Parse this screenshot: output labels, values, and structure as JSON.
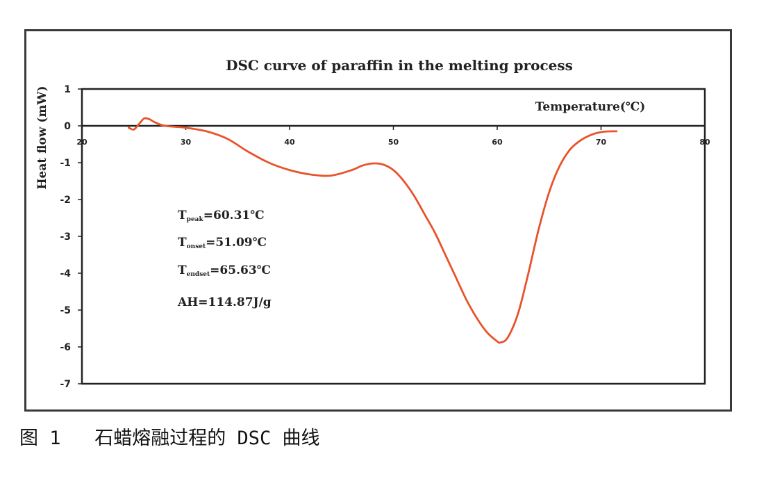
{
  "caption": "图 1   石蜡熔融过程的 DSC 曲线",
  "chart_data": {
    "type": "line",
    "title": "DSC curve of paraffin in the melting process",
    "xlabel": "Temperature(℃)",
    "ylabel": "Heat flow (mW)",
    "xlim": [
      20,
      80
    ],
    "ylim": [
      -7,
      1
    ],
    "x_ticks": [
      20,
      30,
      40,
      50,
      60,
      70,
      80
    ],
    "y_ticks": [
      1,
      0,
      -1,
      -2,
      -3,
      -4,
      -5,
      -6,
      -7
    ],
    "line_color": "#e8532b",
    "grid": false,
    "series": [
      {
        "x": [
          24.5,
          25.0,
          25.5,
          26.0,
          26.5,
          27.0,
          28.0,
          30.0,
          32.0,
          34.0,
          36.0,
          38.0,
          40.0,
          42.0,
          44.0,
          46.0,
          47.0,
          48.0,
          49.0,
          50.0,
          51.0,
          52.0,
          53.0,
          54.0,
          55.0,
          56.0,
          57.0,
          58.0,
          59.0,
          60.0,
          60.31,
          61.0,
          62.0,
          63.0,
          64.0,
          65.0,
          66.0,
          67.0,
          68.0,
          69.0,
          70.0,
          71.0,
          71.5
        ],
        "values": [
          -0.05,
          -0.1,
          0.05,
          0.2,
          0.18,
          0.1,
          0.0,
          -0.05,
          -0.15,
          -0.35,
          -0.7,
          -1.0,
          -1.2,
          -1.32,
          -1.35,
          -1.2,
          -1.08,
          -1.02,
          -1.05,
          -1.2,
          -1.5,
          -1.9,
          -2.4,
          -2.9,
          -3.5,
          -4.1,
          -4.7,
          -5.2,
          -5.6,
          -5.85,
          -5.88,
          -5.75,
          -5.1,
          -4.0,
          -2.8,
          -1.8,
          -1.1,
          -0.65,
          -0.4,
          -0.25,
          -0.17,
          -0.15,
          -0.15
        ]
      }
    ],
    "annotations": [
      {
        "main": "T",
        "sub": "peak",
        "value": "=60.31℃"
      },
      {
        "main": "T",
        "sub": "onset",
        "value": "=51.09℃"
      },
      {
        "main": "T",
        "sub": "endset",
        "value": "=65.63℃"
      },
      {
        "main": "AH=114.87J/g",
        "sub": "",
        "value": ""
      }
    ]
  }
}
